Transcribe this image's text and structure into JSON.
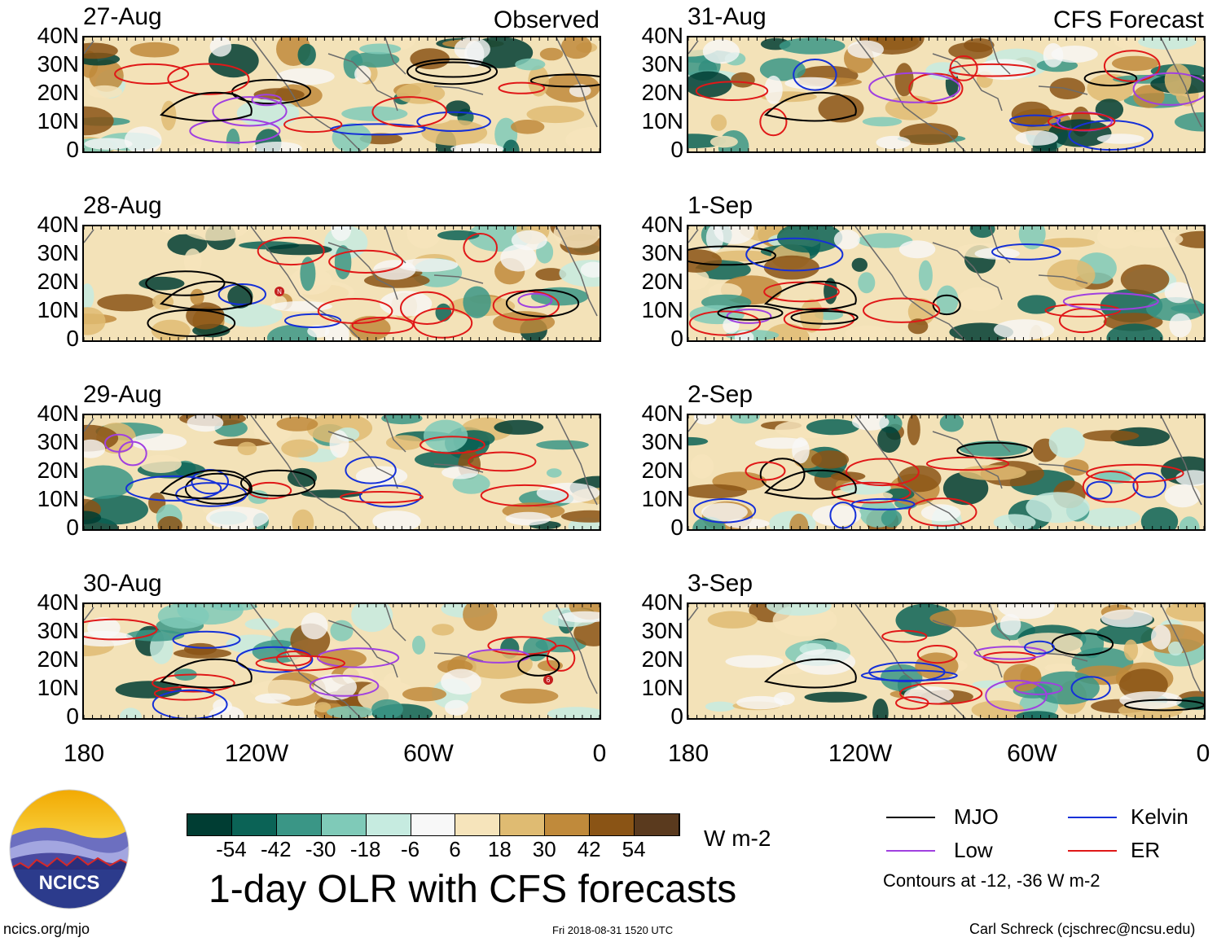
{
  "headers": {
    "observed": "Observed",
    "forecast": "CFS Forecast"
  },
  "y_ticks": [
    "40N",
    "30N",
    "20N",
    "10N",
    "0"
  ],
  "x_ticks": [
    "180",
    "120W",
    "60W",
    "0"
  ],
  "panels": [
    {
      "date": "27-Aug",
      "column": "observed"
    },
    {
      "date": "28-Aug",
      "column": "observed"
    },
    {
      "date": "29-Aug",
      "column": "observed"
    },
    {
      "date": "30-Aug",
      "column": "observed"
    },
    {
      "date": "31-Aug",
      "column": "forecast"
    },
    {
      "date": "1-Sep",
      "column": "forecast"
    },
    {
      "date": "2-Sep",
      "column": "forecast"
    },
    {
      "date": "3-Sep",
      "column": "forecast"
    }
  ],
  "colorbar": {
    "colors": [
      "#003d33",
      "#0b6356",
      "#3a9686",
      "#7fcab8",
      "#c6ebe0",
      "#f8f8f8",
      "#f6e4bb",
      "#dfbb72",
      "#c08a3b",
      "#8a5415",
      "#5a3a1e"
    ],
    "labels": [
      "-54",
      "-42",
      "-30",
      "-18",
      "-6",
      "6",
      "18",
      "30",
      "42",
      "54"
    ],
    "unit": "W m-2"
  },
  "title": "1-day OLR with CFS forecasts",
  "legend": {
    "items": [
      {
        "name": "MJO",
        "color": "#000000"
      },
      {
        "name": "Kelvin",
        "color": "#1530d8"
      },
      {
        "name": "Low",
        "color": "#a040e0"
      },
      {
        "name": "ER",
        "color": "#e01818"
      }
    ],
    "note": "Contours at -12, -36 W m-2"
  },
  "logo": {
    "text": "NCICS"
  },
  "footer": {
    "url": "ncics.org/mjo",
    "timestamp": "Fri 2018-08-31 1520 UTC",
    "credit": "Carl Schreck (cjschrec@ncsu.edu)"
  },
  "panel_labels": {
    "storm_28aug": "N",
    "storm_30aug": "6"
  }
}
